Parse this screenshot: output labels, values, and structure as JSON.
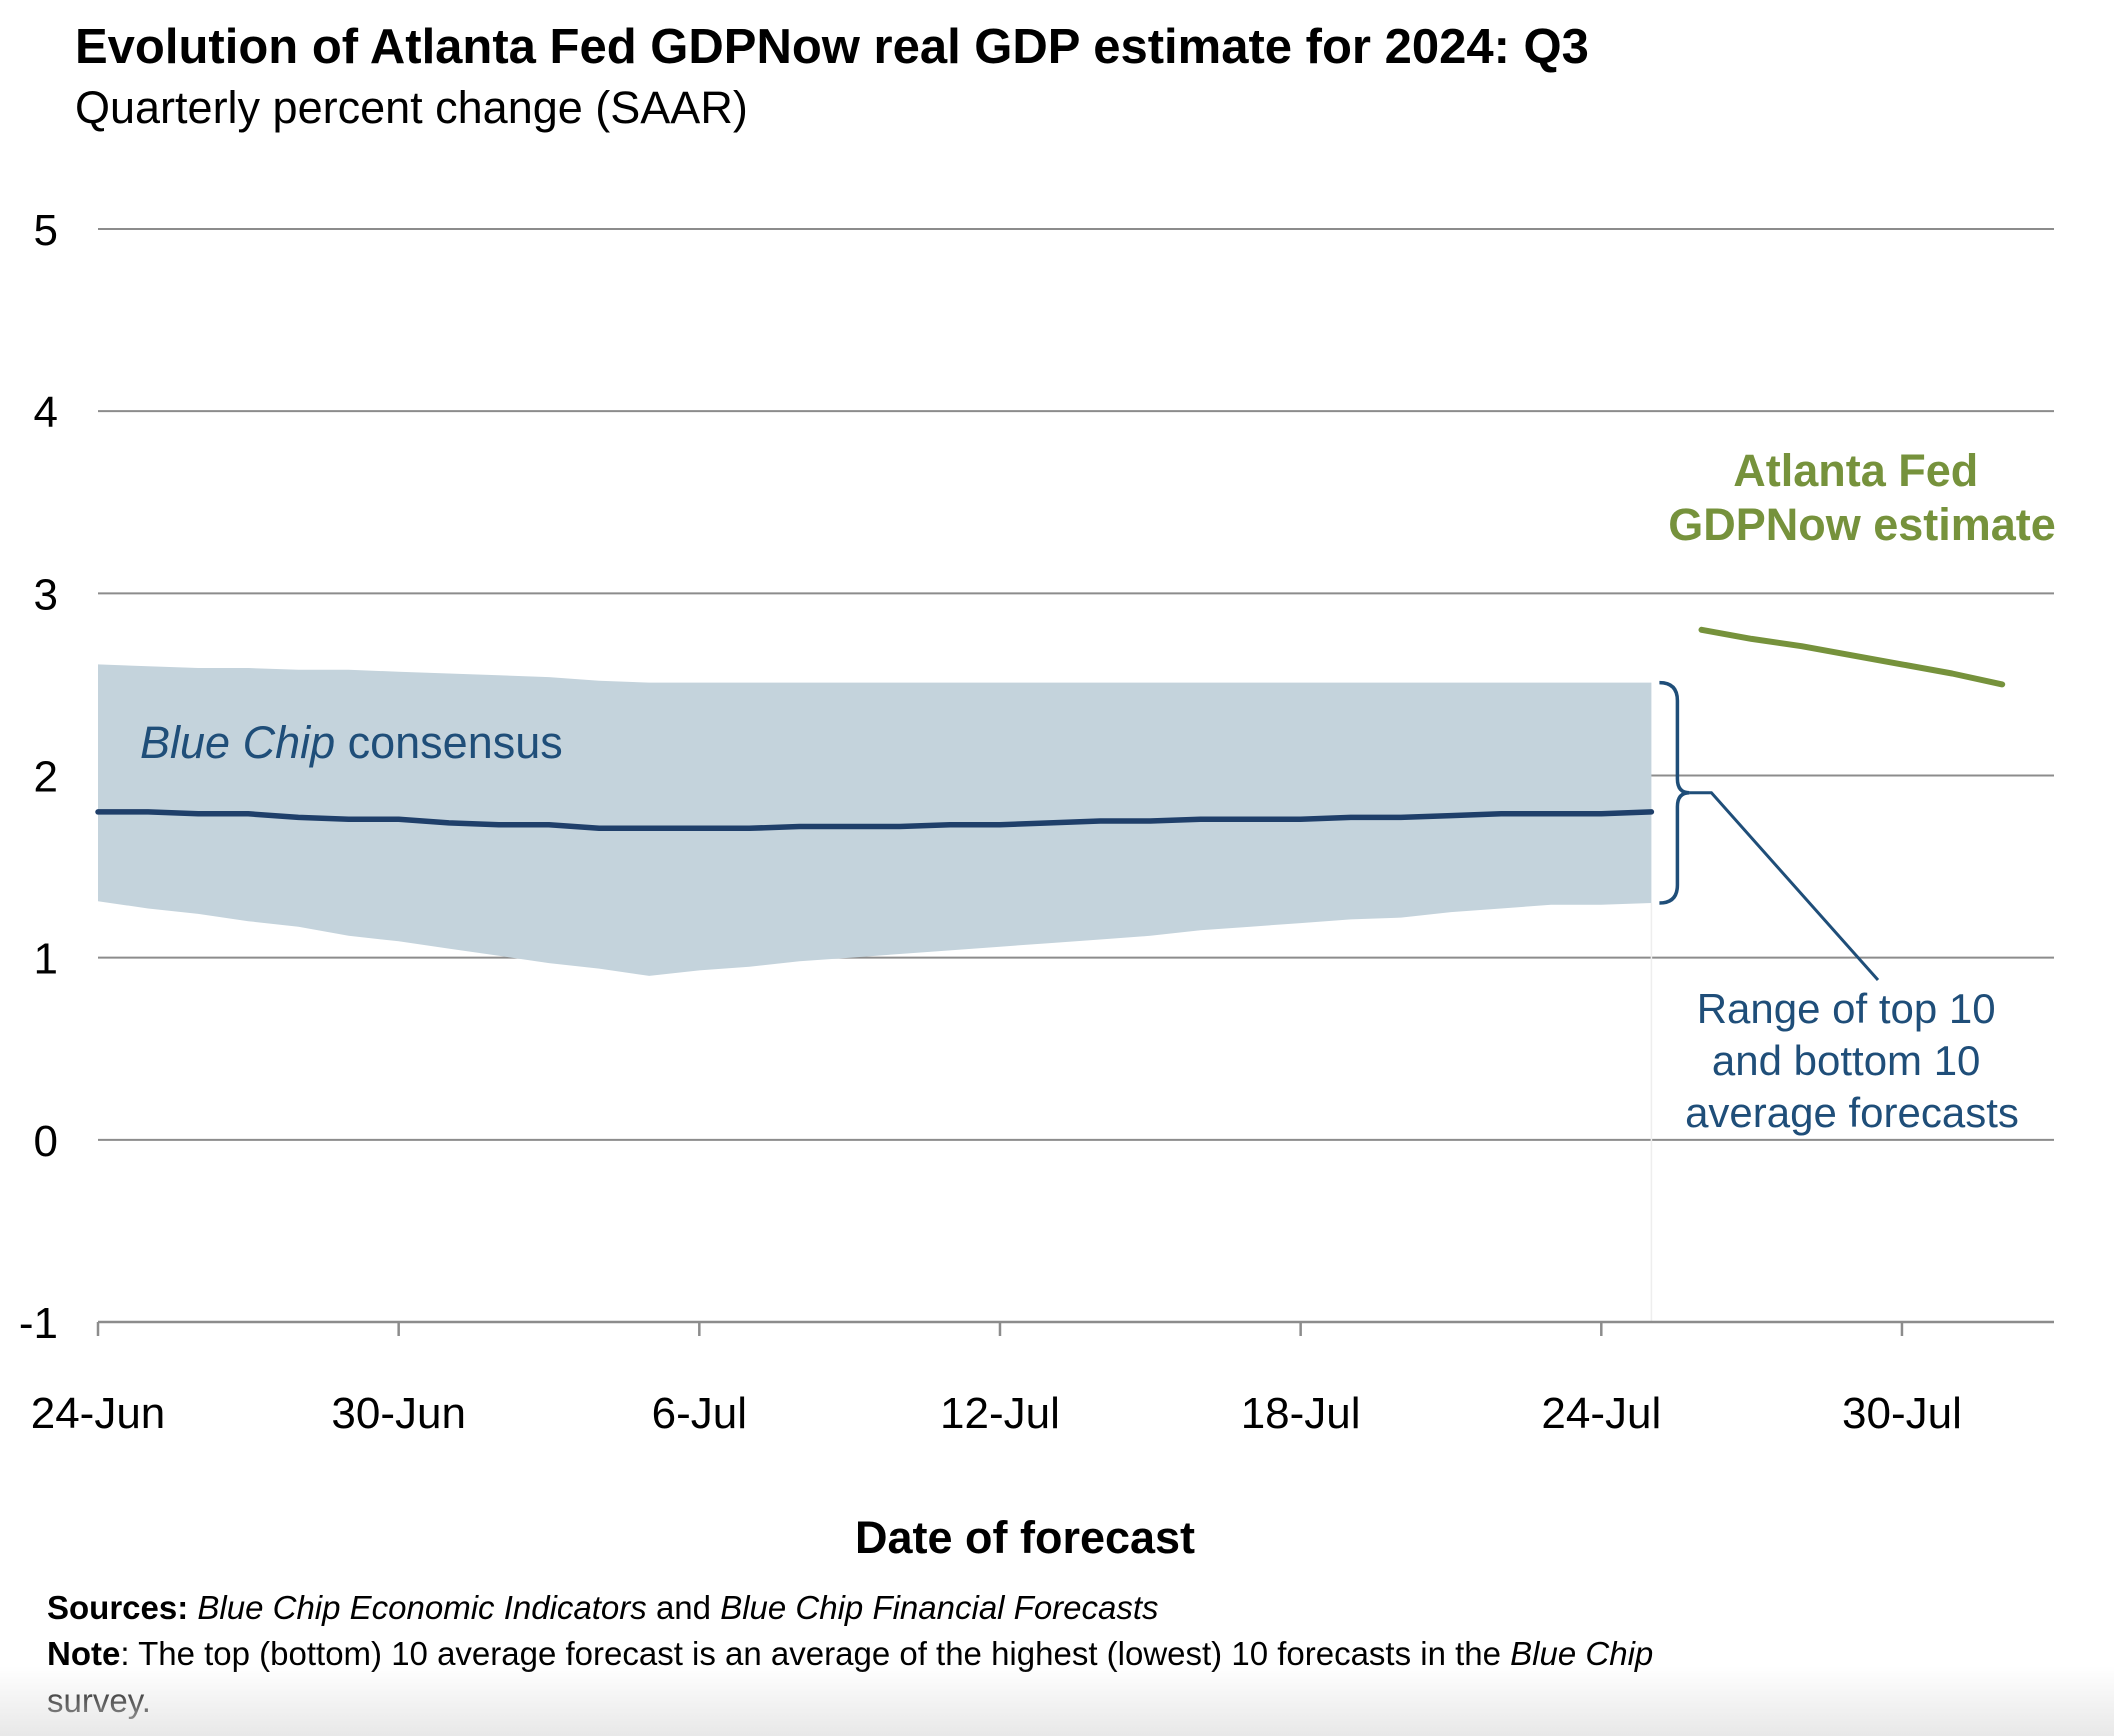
{
  "title": "Evolution of Atlanta Fed GDPNow real GDP estimate for 2024: Q3",
  "subtitle": "Quarterly percent change (SAAR)",
  "colors": {
    "band": "#c4d3dc",
    "consensus": "#1f3f6a",
    "gdpnow": "#76923c",
    "annotation_blue": "#1f4e79",
    "gridline": "#8c8c8c",
    "axis": "#8c8c8c"
  },
  "annotations": {
    "gdpnow_label": [
      "Atlanta Fed",
      "GDPNow estimate"
    ],
    "consensus_label_italic": "Blue Chip",
    "consensus_label_rest": " consensus",
    "range_label": [
      "Range of top 10",
      "and bottom 10",
      "average forecasts"
    ]
  },
  "footer": {
    "sources_label": "Sources:",
    "sources_text_1": "Blue Chip Economic Indicators",
    "sources_and": " and ",
    "sources_text_2": "Blue Chip Financial Forecasts",
    "note_label": "Note",
    "note_text": ": The top (bottom) 10 average forecast is an average of the highest (lowest) 10 forecasts in the ",
    "note_italic": "Blue Chip",
    "note_end": "survey."
  },
  "chart_data": {
    "type": "line",
    "title": "Evolution of Atlanta Fed GDPNow real GDP estimate for 2024: Q3",
    "subtitle": "Quarterly percent change (SAAR)",
    "xlabel": "Date of forecast",
    "ylabel": "",
    "ylim": [
      -1,
      5
    ],
    "yticks": [
      "5",
      "4",
      "3",
      "2",
      "1",
      "0",
      "-1"
    ],
    "ytick_values": [
      5,
      4,
      3,
      2,
      1,
      0,
      -1
    ],
    "xlim_days": [
      0,
      39
    ],
    "xticks": [
      "24-Jun",
      "30-Jun",
      "6-Jul",
      "12-Jul",
      "18-Jul",
      "24-Jul",
      "30-Jul"
    ],
    "xtick_days": [
      0,
      6,
      12,
      18,
      24,
      30,
      36
    ],
    "grid": true,
    "x_day_zero": "24-Jun",
    "band": {
      "name": "Range of top 10 and bottom 10 average forecasts",
      "x_days": [
        0,
        1,
        2,
        3,
        4,
        5,
        6,
        7,
        8,
        9,
        10,
        11,
        12,
        13,
        14,
        15,
        16,
        17,
        18,
        19,
        20,
        21,
        22,
        23,
        24,
        25,
        26,
        27,
        28,
        29,
        30,
        31
      ],
      "upper": [
        2.61,
        2.6,
        2.59,
        2.59,
        2.58,
        2.58,
        2.57,
        2.56,
        2.55,
        2.54,
        2.52,
        2.51,
        2.51,
        2.51,
        2.51,
        2.51,
        2.51,
        2.51,
        2.51,
        2.51,
        2.51,
        2.51,
        2.51,
        2.51,
        2.51,
        2.51,
        2.51,
        2.51,
        2.51,
        2.51,
        2.51,
        2.51
      ],
      "lower": [
        1.31,
        1.27,
        1.24,
        1.2,
        1.17,
        1.12,
        1.09,
        1.05,
        1.01,
        0.97,
        0.94,
        0.9,
        0.93,
        0.95,
        0.98,
        1.0,
        1.02,
        1.04,
        1.06,
        1.08,
        1.1,
        1.12,
        1.15,
        1.17,
        1.19,
        1.21,
        1.22,
        1.25,
        1.27,
        1.29,
        1.29,
        1.3
      ]
    },
    "series": [
      {
        "name": "Blue Chip consensus",
        "x_days": [
          0,
          1,
          2,
          3,
          4,
          5,
          6,
          7,
          8,
          9,
          10,
          11,
          12,
          13,
          14,
          15,
          16,
          17,
          18,
          19,
          20,
          21,
          22,
          23,
          24,
          25,
          26,
          27,
          28,
          29,
          30,
          31
        ],
        "values": [
          1.8,
          1.8,
          1.79,
          1.79,
          1.77,
          1.76,
          1.76,
          1.74,
          1.73,
          1.73,
          1.71,
          1.71,
          1.71,
          1.71,
          1.72,
          1.72,
          1.72,
          1.73,
          1.73,
          1.74,
          1.75,
          1.75,
          1.76,
          1.76,
          1.76,
          1.77,
          1.77,
          1.78,
          1.79,
          1.79,
          1.79,
          1.8
        ]
      },
      {
        "name": "Atlanta Fed GDPNow estimate",
        "x_days": [
          32,
          33,
          34,
          35,
          36,
          37,
          38
        ],
        "values": [
          2.8,
          2.75,
          2.71,
          2.66,
          2.61,
          2.56,
          2.5
        ]
      }
    ]
  }
}
